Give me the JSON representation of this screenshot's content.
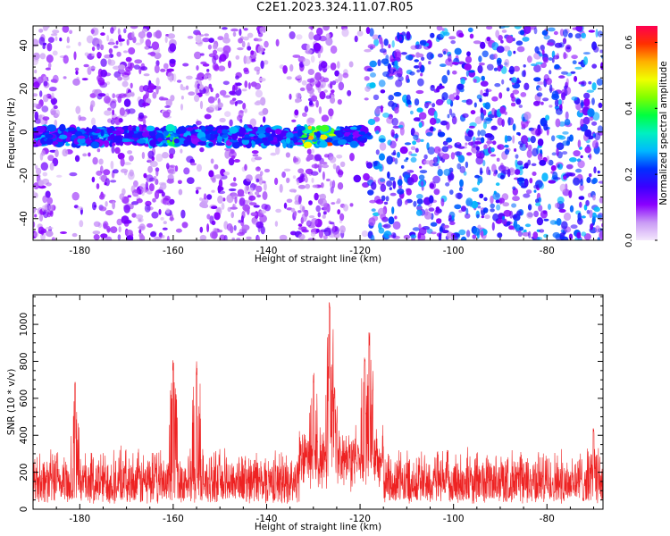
{
  "figure": {
    "title": "C2E1.2023.324.11.07.R05"
  },
  "chart_data": [
    {
      "type": "heatmap",
      "xlabel": "Height of straight line (km)",
      "ylabel": "Frequency (Hz)",
      "xlim": [
        -190,
        -68
      ],
      "ylim": [
        -50,
        49
      ],
      "x_ticks": [
        "-180",
        "-160",
        "-140",
        "-120",
        "-100",
        "-80"
      ],
      "y_ticks": [
        "-40",
        "-20",
        "0",
        "20",
        "40"
      ],
      "colorbar": {
        "label": "Normalized spectral amplitude",
        "range": [
          0,
          0.65
        ],
        "ticks": [
          "0.0",
          "0.2",
          "0.4",
          "0.6"
        ],
        "colors": [
          "#f4e8fc",
          "#c99af5",
          "#8a00ff",
          "#3a00ff",
          "#0030ff",
          "#00b8ff",
          "#00f0c0",
          "#00ff40",
          "#80ff00",
          "#f0ff00",
          "#ffb000",
          "#ff3000",
          "#ff0050"
        ]
      },
      "band": {
        "center_hz": -2,
        "x_range": [
          -190,
          -118
        ],
        "peaks": [
          {
            "x": -160,
            "value": 0.45
          },
          {
            "x": -131,
            "value": 0.55
          },
          {
            "x": -127,
            "value": 0.6
          }
        ]
      },
      "background_noise_level": {
        "x_range_low": [
          -190,
          -118
        ],
        "low_level": 0.08,
        "x_range_high": [
          -118,
          -68
        ],
        "high_level": 0.16
      }
    },
    {
      "type": "line",
      "xlabel": "Height of straight line (km)",
      "ylabel": "SNR (10 * v/v)",
      "xlim": [
        -190,
        -68
      ],
      "ylim": [
        0,
        1160
      ],
      "x_ticks": [
        "-180",
        "-160",
        "-140",
        "-120",
        "-100",
        "-80"
      ],
      "y_ticks": [
        "0",
        "200",
        "400",
        "600",
        "800",
        "1000"
      ],
      "color": "#ee2222",
      "baseline": 150,
      "noise_high": 250,
      "peaks": [
        {
          "x": -181,
          "y": 700
        },
        {
          "x": -160,
          "y": 820
        },
        {
          "x": -155,
          "y": 800
        },
        {
          "x": -130,
          "y": 740
        },
        {
          "x": -126.5,
          "y": 1160
        },
        {
          "x": -125.5,
          "y": 660
        },
        {
          "x": -118,
          "y": 970
        },
        {
          "x": -119,
          "y": 850
        },
        {
          "x": -70,
          "y": 450
        }
      ]
    }
  ]
}
